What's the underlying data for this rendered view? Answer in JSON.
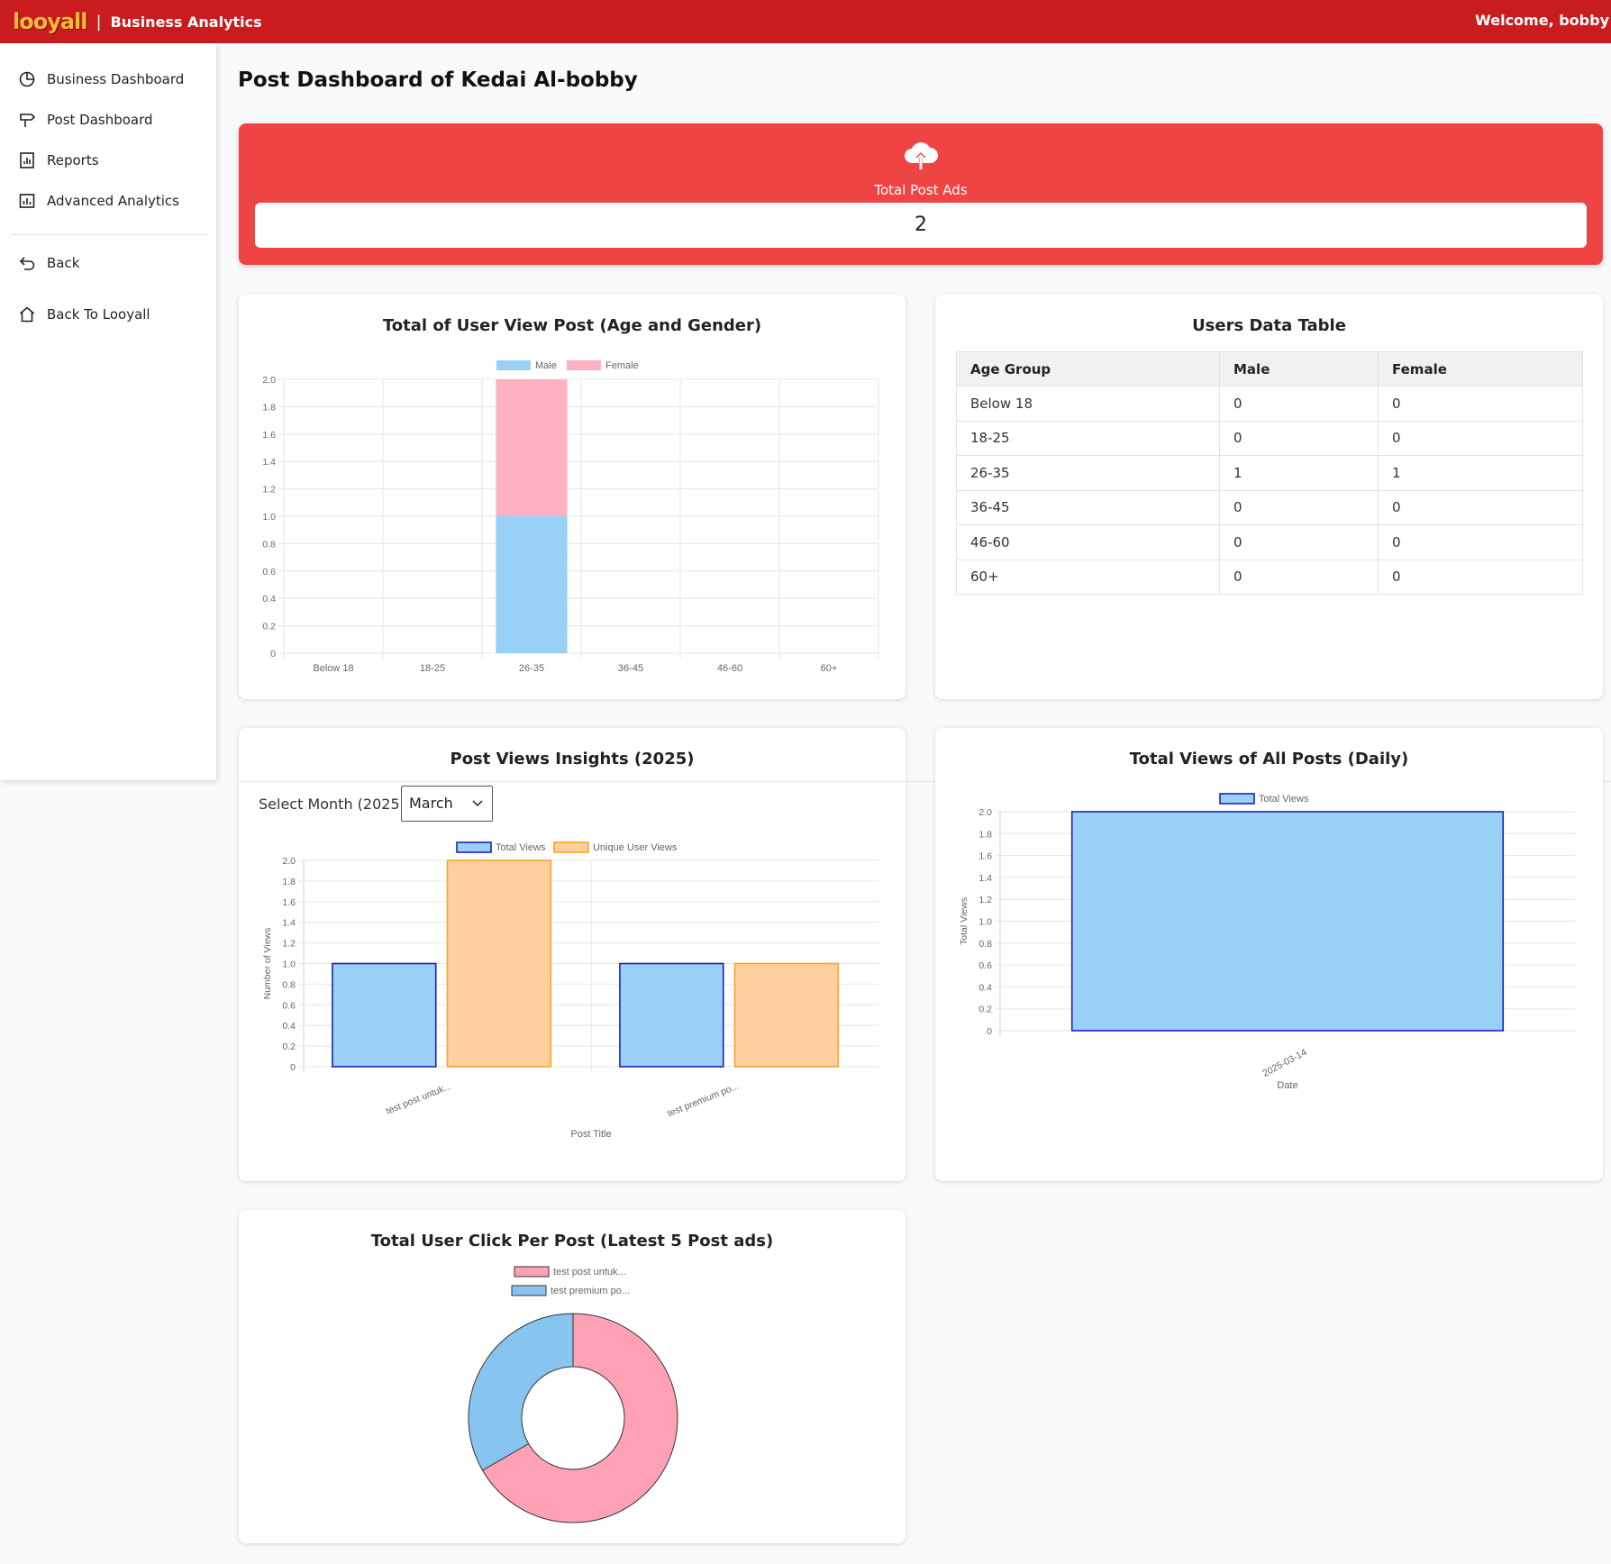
{
  "topbar": {
    "logo_text": "looyall",
    "separator": "|",
    "brand": "Business Analytics",
    "welcome": "Welcome, bobby"
  },
  "sidebar": {
    "items": [
      {
        "label": "Business Dashboard",
        "icon": "pie-chart-icon"
      },
      {
        "label": "Post Dashboard",
        "icon": "signpost-icon"
      },
      {
        "label": "Reports",
        "icon": "report-icon"
      },
      {
        "label": "Advanced Analytics",
        "icon": "bar-chart-icon"
      },
      {
        "label": "Back",
        "icon": "back-arrow-icon"
      },
      {
        "label": "Back To Looyall",
        "icon": "home-icon"
      }
    ]
  },
  "page": {
    "title": "Post Dashboard of Kedai Al-bobby"
  },
  "ads_card": {
    "icon": "cloud-upload-icon",
    "label": "Total Post Ads",
    "value": "2"
  },
  "users_table": {
    "title": "Users Data Table",
    "columns": [
      "Age Group",
      "Male",
      "Female"
    ],
    "rows": [
      [
        "Below 18",
        "0",
        "0"
      ],
      [
        "18-25",
        "0",
        "0"
      ],
      [
        "26-35",
        "1",
        "1"
      ],
      [
        "36-45",
        "0",
        "0"
      ],
      [
        "46-60",
        "0",
        "0"
      ],
      [
        "60+",
        "0",
        "0"
      ]
    ]
  },
  "month_select": {
    "label": "Select Month (2025):",
    "selected": "March"
  },
  "colors": {
    "brand_red": "#c91c1f",
    "card_red": "#ef4444",
    "male_blue": "#9ad0f5",
    "female_pink": "#ffb1c1",
    "total_views_fill": "#9ad0f5",
    "total_views_border": "#1a22b8",
    "unique_fill": "#ffcf9f",
    "unique_border": "#f5a623",
    "donut_pink": "#ffa1b5",
    "donut_blue": "#87c5f0"
  },
  "chart_data": [
    {
      "type": "bar",
      "stacked": true,
      "title": "Total of User View Post (Age and Gender)",
      "categories": [
        "Below 18",
        "18-25",
        "26-35",
        "36-45",
        "46-60",
        "60+"
      ],
      "series": [
        {
          "name": "Male",
          "values": [
            0,
            0,
            1,
            0,
            0,
            0
          ]
        },
        {
          "name": "Female",
          "values": [
            0,
            0,
            1,
            0,
            0,
            0
          ]
        }
      ],
      "ylim": [
        0,
        2.0
      ],
      "yticks": [
        "0",
        "0.2",
        "0.4",
        "0.6",
        "0.8",
        "1.0",
        "1.2",
        "1.4",
        "1.6",
        "1.8",
        "2.0"
      ],
      "legend": "top",
      "grid": true
    },
    {
      "type": "bar",
      "title": "Post Views Insights (2025)",
      "categories": [
        "test post untuk...",
        "test premium po..."
      ],
      "series": [
        {
          "name": "Total Views",
          "values": [
            1,
            1
          ]
        },
        {
          "name": "Unique User Views",
          "values": [
            2,
            1
          ]
        }
      ],
      "xlabel": "Post Title",
      "ylabel": "Number of Views",
      "ylim": [
        0,
        2.0
      ],
      "yticks": [
        "0",
        "0.2",
        "0.4",
        "0.6",
        "0.8",
        "1.0",
        "1.2",
        "1.4",
        "1.6",
        "1.8",
        "2.0"
      ],
      "legend": "top",
      "grid": true
    },
    {
      "type": "bar",
      "title": "Total Views of All Posts (Daily)",
      "categories": [
        "2025-03-14"
      ],
      "series": [
        {
          "name": "Total Views",
          "values": [
            2
          ]
        }
      ],
      "xlabel": "Date",
      "ylabel": "Total Views",
      "ylim": [
        0,
        2.0
      ],
      "yticks": [
        "0",
        "0.2",
        "0.4",
        "0.6",
        "0.8",
        "1.0",
        "1.2",
        "1.4",
        "1.6",
        "1.8",
        "2.0"
      ],
      "legend": "top",
      "grid": true
    },
    {
      "type": "pie",
      "donut": true,
      "title": "Total User Click Per Post (Latest 5 Post ads)",
      "categories": [
        "test post untuk...",
        "test premium po..."
      ],
      "values": [
        2,
        1
      ],
      "legend": "top"
    }
  ]
}
